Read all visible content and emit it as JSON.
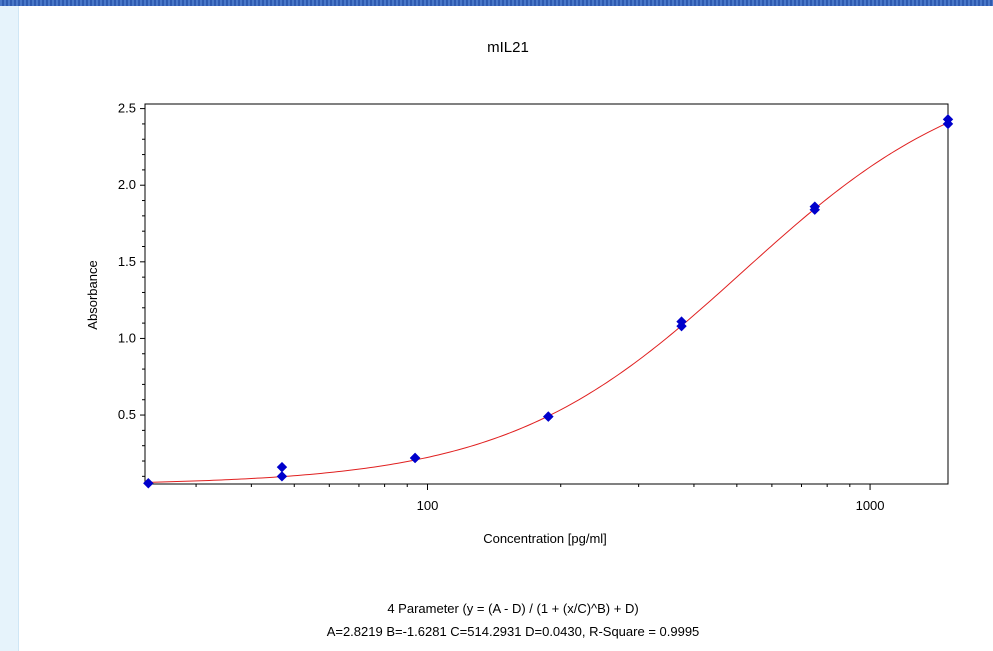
{
  "chart_data": {
    "type": "scatter",
    "title": "mIL21",
    "xlabel": "Concentration [pg/ml]",
    "ylabel": "Absorbance",
    "x_scale": "log",
    "xlim": [
      23,
      1500
    ],
    "ylim": [
      0.05,
      2.53
    ],
    "x_tick_labels": [
      "100",
      "1000"
    ],
    "x_major_ticks": [
      100,
      1000
    ],
    "x_minor_ticks": [
      30,
      40,
      50,
      60,
      70,
      80,
      90,
      200,
      300,
      400,
      500,
      600,
      700,
      800,
      900
    ],
    "y_tick_labels": [
      "0.5",
      "1.0",
      "1.5",
      "2.0",
      "2.5"
    ],
    "y_major_ticks": [
      0.5,
      1.0,
      1.5,
      2.0,
      2.5
    ],
    "y_minor_ticks": [
      0.1,
      0.2,
      0.3,
      0.4,
      0.6,
      0.7,
      0.8,
      0.9,
      1.1,
      1.2,
      1.3,
      1.4,
      1.6,
      1.7,
      1.8,
      1.9,
      2.1,
      2.2,
      2.3,
      2.4
    ],
    "grid": false,
    "series": [
      {
        "kind": "points",
        "color": "#0000cc",
        "x": [
          23.4,
          46.9,
          46.9,
          93.75,
          93.75,
          187.5,
          187.5,
          375,
          375,
          750,
          750,
          1500,
          1500
        ],
        "y": [
          0.055,
          0.16,
          0.1,
          0.22,
          0.22,
          0.49,
          0.49,
          1.11,
          1.08,
          1.86,
          1.84,
          2.43,
          2.4
        ]
      },
      {
        "kind": "fit",
        "color": "#e02020",
        "model": "4PL",
        "params": {
          "A": 2.8219,
          "B": -1.6281,
          "C": 514.2931,
          "D": 0.043
        }
      }
    ],
    "annotations": [
      "4 Parameter (y = (A - D) / (1 + (x/C)^B) + D)",
      "A=2.8219  B=-1.6281  C=514.2931  D=0.0430, R-Square = 0.9995"
    ]
  }
}
